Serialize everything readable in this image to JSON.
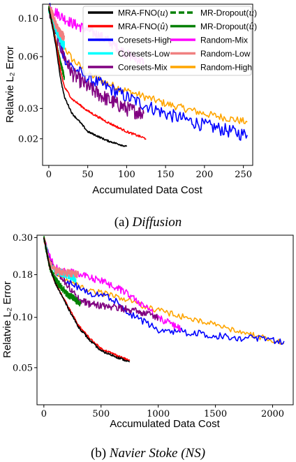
{
  "chart_data": [
    {
      "type": "line",
      "caption_prefix": "(a)",
      "caption_title": "Diffusion",
      "xlabel": "Accumulated Data Cost",
      "ylabel": "Relatvie L₂ Error",
      "xlim": [
        -8,
        262
      ],
      "ylim": [
        0.014,
        0.121
      ],
      "xticks": [
        0,
        50,
        100,
        150,
        200,
        250
      ],
      "xtick_labels": [
        "0",
        "50",
        "100",
        "150",
        "200",
        "250"
      ],
      "yticks": [
        0.02,
        0.03,
        0.06,
        0.1
      ],
      "ytick_labels": [
        "0.02",
        "0.03",
        "0.06",
        "0.10"
      ],
      "legend": {
        "placement": "top-right",
        "columns": 2,
        "entries": [
          {
            "name": "MRA-FNO(u)",
            "name_main": "MRA-FNO(",
            "name_var": "u",
            "name_end": ")",
            "color": "#000000",
            "dashed": false
          },
          {
            "name": "MR-Dropout(u)",
            "name_main": "MR-Dropout(",
            "name_var": "u",
            "name_end": ")",
            "color": "#008000",
            "dashed": true
          },
          {
            "name": "MRA-FNO(û)",
            "name_main": "MRA-FNO(",
            "name_var": "û",
            "name_end": ")",
            "color": "#ff0000",
            "dashed": false
          },
          {
            "name": "MR-Dropout(û)",
            "name_main": "MR-Dropout(",
            "name_var": "û",
            "name_end": ")",
            "color": "#008000",
            "dashed": false
          },
          {
            "name": "Coresets-High",
            "name_main": "Coresets-High",
            "name_var": "",
            "name_end": "",
            "color": "#0000ff",
            "dashed": false
          },
          {
            "name": "Random-Mix",
            "name_main": "Random-Mix",
            "name_var": "",
            "name_end": "",
            "color": "#ff00ff",
            "dashed": false
          },
          {
            "name": "Coresets-Low",
            "name_main": "Coresets-Low",
            "name_var": "",
            "name_end": "",
            "color": "#00ffff",
            "dashed": false
          },
          {
            "name": "Random-Low",
            "name_main": "Random-Low",
            "name_var": "",
            "name_end": "",
            "color": "#f08080",
            "dashed": false
          },
          {
            "name": "Coresets-Mix",
            "name_main": "Coresets-Mix",
            "name_var": "",
            "name_end": "",
            "color": "#800080",
            "dashed": false
          },
          {
            "name": "Random-High",
            "name_main": "Random-High",
            "name_var": "",
            "name_end": "",
            "color": "#ffa500",
            "dashed": false
          }
        ]
      },
      "series": [
        {
          "name": "Random-High",
          "color": "#ffa500",
          "noise": 0.05,
          "x": [
            0,
            5,
            10,
            20,
            30,
            50,
            75,
            100,
            150,
            200,
            255
          ],
          "y": [
            0.115,
            0.1,
            0.085,
            0.068,
            0.058,
            0.048,
            0.042,
            0.038,
            0.032,
            0.028,
            0.025
          ]
        },
        {
          "name": "Coresets-High",
          "color": "#0000ff",
          "noise": 0.09,
          "x": [
            0,
            5,
            10,
            20,
            30,
            50,
            75,
            100,
            150,
            200,
            255
          ],
          "y": [
            0.118,
            0.1,
            0.08,
            0.06,
            0.052,
            0.045,
            0.04,
            0.035,
            0.028,
            0.024,
            0.021
          ]
        },
        {
          "name": "Random-Mix",
          "color": "#ff00ff",
          "noise": 0.07,
          "x": [
            0,
            5,
            10,
            20,
            30,
            50,
            75,
            100,
            122
          ],
          "y": [
            0.116,
            0.112,
            0.108,
            0.1,
            0.094,
            0.086,
            0.075,
            0.062,
            0.056
          ]
        },
        {
          "name": "Coresets-Mix",
          "color": "#800080",
          "noise": 0.1,
          "x": [
            0,
            5,
            10,
            20,
            30,
            50,
            75,
            100,
            122
          ],
          "y": [
            0.115,
            0.095,
            0.08,
            0.06,
            0.048,
            0.04,
            0.034,
            0.03,
            0.028
          ]
        },
        {
          "name": "Coresets-Low",
          "color": "#00ffff",
          "noise": 0.06,
          "x": [
            0,
            5,
            10,
            15,
            20
          ],
          "y": [
            0.115,
            0.1,
            0.085,
            0.075,
            0.07
          ]
        },
        {
          "name": "Random-Low",
          "color": "#f08080",
          "noise": 0.06,
          "x": [
            0,
            5,
            10,
            15,
            20
          ],
          "y": [
            0.115,
            0.105,
            0.09,
            0.082,
            0.078
          ]
        },
        {
          "name": "MR-Dropout(û)",
          "color": "#008000",
          "noise": 0.03,
          "x": [
            0,
            5,
            10,
            15,
            20
          ],
          "y": [
            0.115,
            0.09,
            0.07,
            0.055,
            0.045
          ]
        },
        {
          "name": "MR-Dropout(u)",
          "color": "#008000",
          "noise": 0.03,
          "x": [
            0,
            5,
            10,
            15,
            20
          ],
          "y": [
            0.115,
            0.09,
            0.07,
            0.056,
            0.046
          ]
        },
        {
          "name": "MRA-FNO(û)",
          "color": "#ff0000",
          "noise": 0.015,
          "x": [
            0,
            5,
            10,
            15,
            20,
            30,
            50,
            75,
            100,
            125
          ],
          "y": [
            0.115,
            0.09,
            0.07,
            0.05,
            0.04,
            0.034,
            0.029,
            0.025,
            0.022,
            0.02
          ]
        },
        {
          "name": "MRA-FNO(u)",
          "color": "#000000",
          "noise": 0.012,
          "x": [
            0,
            5,
            10,
            15,
            20,
            30,
            40,
            50,
            75,
            100
          ],
          "y": [
            0.115,
            0.088,
            0.065,
            0.045,
            0.035,
            0.028,
            0.025,
            0.022,
            0.0195,
            0.018
          ]
        }
      ]
    },
    {
      "type": "line",
      "caption_prefix": "(b)",
      "caption_title": "Navier Stoke (NS)",
      "xlabel": "Accumulated Data Cost",
      "ylabel": "Relatvie L₂ Error",
      "xlim": [
        -60,
        2180
      ],
      "ylim": [
        0.03,
        0.31
      ],
      "xticks": [
        0,
        500,
        1000,
        1500,
        2000
      ],
      "xtick_labels": [
        "0",
        "500",
        "1000",
        "1500",
        "2000"
      ],
      "yticks": [
        0.05,
        0.1,
        0.18,
        0.3
      ],
      "ytick_labels": [
        "0.05",
        "0.10",
        "0.18",
        "0.30"
      ],
      "series": [
        {
          "name": "Random-High",
          "color": "#ffa500",
          "noise": 0.04,
          "x": [
            0,
            50,
            100,
            200,
            400,
            600,
            1000,
            1500,
            2100
          ],
          "y": [
            0.3,
            0.22,
            0.19,
            0.165,
            0.145,
            0.135,
            0.11,
            0.09,
            0.07
          ]
        },
        {
          "name": "Coresets-High",
          "color": "#0000ff",
          "noise": 0.05,
          "x": [
            0,
            50,
            100,
            200,
            400,
            600,
            800,
            1000,
            1500,
            2100
          ],
          "y": [
            0.3,
            0.22,
            0.19,
            0.165,
            0.14,
            0.13,
            0.1,
            0.085,
            0.078,
            0.072
          ]
        },
        {
          "name": "Random-Mix",
          "color": "#ff00ff",
          "noise": 0.05,
          "x": [
            0,
            50,
            100,
            200,
            400,
            600,
            800,
            1000,
            1200
          ],
          "y": [
            0.3,
            0.23,
            0.2,
            0.19,
            0.175,
            0.155,
            0.13,
            0.1,
            0.085
          ]
        },
        {
          "name": "Coresets-Mix",
          "color": "#800080",
          "noise": 0.05,
          "x": [
            0,
            50,
            100,
            200,
            300,
            400,
            600,
            800,
            1000
          ],
          "y": [
            0.3,
            0.22,
            0.19,
            0.16,
            0.13,
            0.12,
            0.115,
            0.11,
            0.1
          ]
        },
        {
          "name": "Coresets-Low",
          "color": "#00ffff",
          "noise": 0.05,
          "x": [
            0,
            50,
            100,
            200,
            280
          ],
          "y": [
            0.3,
            0.21,
            0.19,
            0.18,
            0.17
          ]
        },
        {
          "name": "Random-Low",
          "color": "#f08080",
          "noise": 0.05,
          "x": [
            0,
            50,
            100,
            200,
            300
          ],
          "y": [
            0.3,
            0.21,
            0.19,
            0.185,
            0.18
          ]
        },
        {
          "name": "MR-Dropout(u)",
          "color": "#008000",
          "noise": 0.04,
          "x": [
            0,
            50,
            100,
            200,
            300
          ],
          "y": [
            0.3,
            0.2,
            0.17,
            0.14,
            0.125
          ]
        },
        {
          "name": "MR-Dropout(û)",
          "color": "#008000",
          "noise": 0.04,
          "x": [
            0,
            50,
            100,
            200,
            320
          ],
          "y": [
            0.3,
            0.2,
            0.165,
            0.138,
            0.12
          ]
        },
        {
          "name": "MRA-FNO(û)",
          "color": "#ff0000",
          "noise": 0.015,
          "x": [
            0,
            50,
            100,
            200,
            300,
            400,
            500,
            750
          ],
          "y": [
            0.3,
            0.2,
            0.16,
            0.12,
            0.09,
            0.075,
            0.065,
            0.055
          ]
        },
        {
          "name": "MRA-FNO(u)",
          "color": "#000000",
          "noise": 0.015,
          "x": [
            0,
            50,
            100,
            200,
            300,
            400,
            500,
            750
          ],
          "y": [
            0.3,
            0.2,
            0.16,
            0.118,
            0.088,
            0.073,
            0.063,
            0.054
          ]
        }
      ]
    }
  ]
}
